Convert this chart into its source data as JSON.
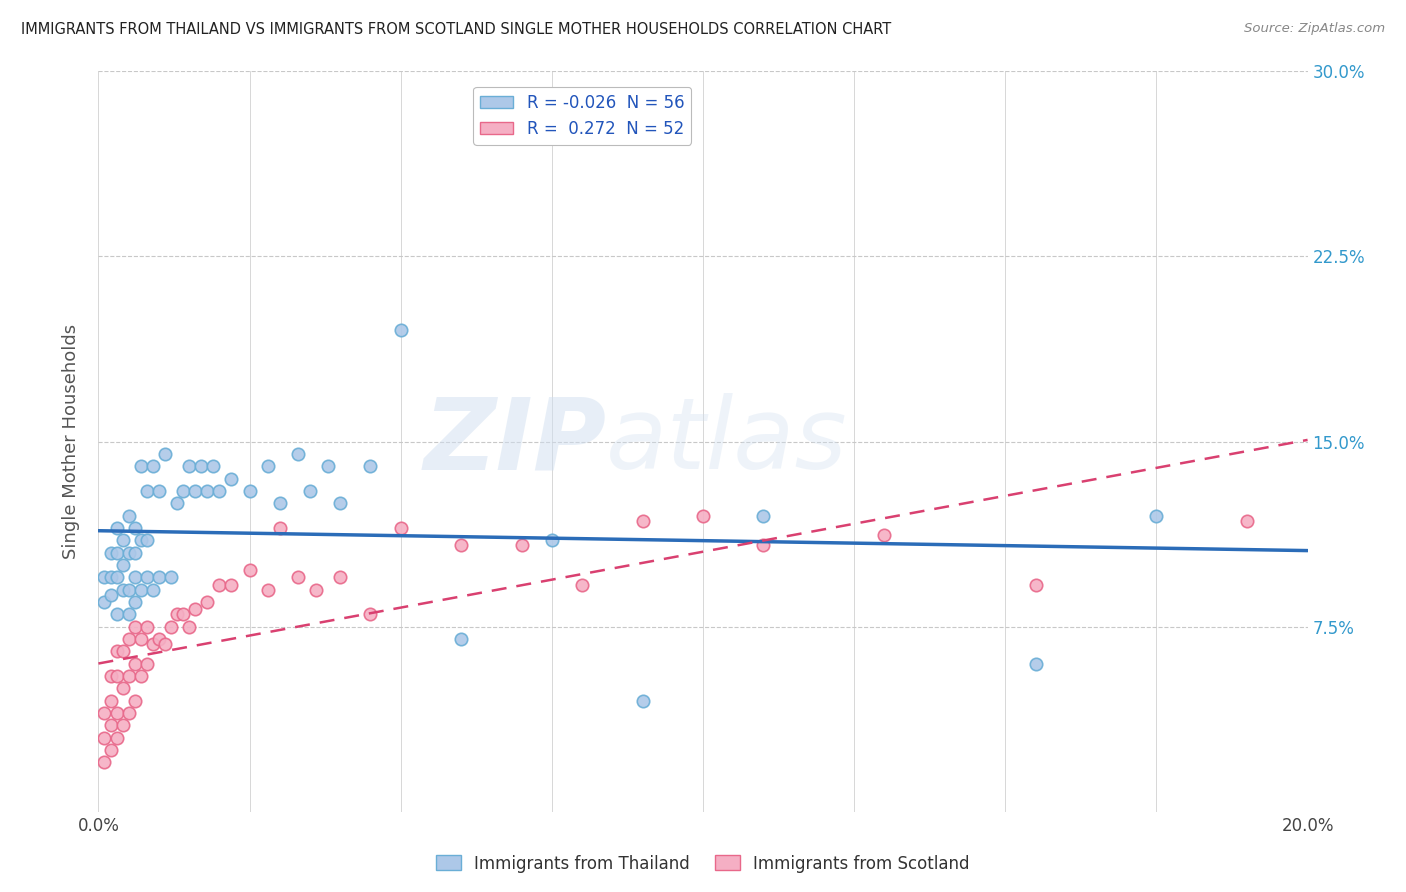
{
  "title": "IMMIGRANTS FROM THAILAND VS IMMIGRANTS FROM SCOTLAND SINGLE MOTHER HOUSEHOLDS CORRELATION CHART",
  "source": "Source: ZipAtlas.com",
  "ylabel": "Single Mother Households",
  "xlabel": "",
  "xlim": [
    0.0,
    0.2
  ],
  "ylim": [
    0.0,
    0.3
  ],
  "yticks": [
    0.0,
    0.075,
    0.15,
    0.225,
    0.3
  ],
  "ytick_labels_right": [
    "",
    "7.5%",
    "15.0%",
    "22.5%",
    "30.0%"
  ],
  "xticks": [
    0.0,
    0.025,
    0.05,
    0.075,
    0.1,
    0.125,
    0.15,
    0.175,
    0.2
  ],
  "xtick_labels": [
    "0.0%",
    "",
    "",
    "",
    "",
    "",
    "",
    "",
    "20.0%"
  ],
  "thailand_color": "#adc8e8",
  "scotland_color": "#f5afc4",
  "thailand_edge": "#6aaed6",
  "scotland_edge": "#e8688a",
  "regression_thailand_color": "#2b6cb8",
  "regression_scotland_color": "#d94070",
  "legend_thailand_label": "R = -0.026  N = 56",
  "legend_scotland_label": "R =  0.272  N = 52",
  "watermark_text": "ZIPatlas",
  "background_color": "#ffffff",
  "grid_color": "#c8c8c8",
  "thailand_x": [
    0.001,
    0.001,
    0.002,
    0.002,
    0.002,
    0.003,
    0.003,
    0.003,
    0.003,
    0.004,
    0.004,
    0.004,
    0.005,
    0.005,
    0.005,
    0.005,
    0.006,
    0.006,
    0.006,
    0.006,
    0.007,
    0.007,
    0.007,
    0.008,
    0.008,
    0.008,
    0.009,
    0.009,
    0.01,
    0.01,
    0.011,
    0.012,
    0.013,
    0.014,
    0.015,
    0.016,
    0.017,
    0.018,
    0.019,
    0.02,
    0.022,
    0.025,
    0.028,
    0.03,
    0.033,
    0.035,
    0.038,
    0.04,
    0.045,
    0.05,
    0.06,
    0.075,
    0.09,
    0.11,
    0.155,
    0.175
  ],
  "thailand_y": [
    0.085,
    0.095,
    0.088,
    0.095,
    0.105,
    0.08,
    0.095,
    0.105,
    0.115,
    0.09,
    0.1,
    0.11,
    0.08,
    0.09,
    0.105,
    0.12,
    0.085,
    0.095,
    0.105,
    0.115,
    0.09,
    0.11,
    0.14,
    0.095,
    0.11,
    0.13,
    0.09,
    0.14,
    0.095,
    0.13,
    0.145,
    0.095,
    0.125,
    0.13,
    0.14,
    0.13,
    0.14,
    0.13,
    0.14,
    0.13,
    0.135,
    0.13,
    0.14,
    0.125,
    0.145,
    0.13,
    0.14,
    0.125,
    0.14,
    0.195,
    0.07,
    0.11,
    0.045,
    0.12,
    0.06,
    0.12
  ],
  "scotland_x": [
    0.001,
    0.001,
    0.001,
    0.002,
    0.002,
    0.002,
    0.002,
    0.003,
    0.003,
    0.003,
    0.003,
    0.004,
    0.004,
    0.004,
    0.005,
    0.005,
    0.005,
    0.006,
    0.006,
    0.006,
    0.007,
    0.007,
    0.008,
    0.008,
    0.009,
    0.01,
    0.011,
    0.012,
    0.013,
    0.014,
    0.015,
    0.016,
    0.018,
    0.02,
    0.022,
    0.025,
    0.028,
    0.03,
    0.033,
    0.036,
    0.04,
    0.045,
    0.05,
    0.06,
    0.07,
    0.08,
    0.09,
    0.1,
    0.11,
    0.13,
    0.155,
    0.19
  ],
  "scotland_y": [
    0.02,
    0.03,
    0.04,
    0.025,
    0.035,
    0.045,
    0.055,
    0.03,
    0.04,
    0.055,
    0.065,
    0.035,
    0.05,
    0.065,
    0.04,
    0.055,
    0.07,
    0.045,
    0.06,
    0.075,
    0.055,
    0.07,
    0.06,
    0.075,
    0.068,
    0.07,
    0.068,
    0.075,
    0.08,
    0.08,
    0.075,
    0.082,
    0.085,
    0.092,
    0.092,
    0.098,
    0.09,
    0.115,
    0.095,
    0.09,
    0.095,
    0.08,
    0.115,
    0.108,
    0.108,
    0.092,
    0.118,
    0.12,
    0.108,
    0.112,
    0.092,
    0.118
  ]
}
